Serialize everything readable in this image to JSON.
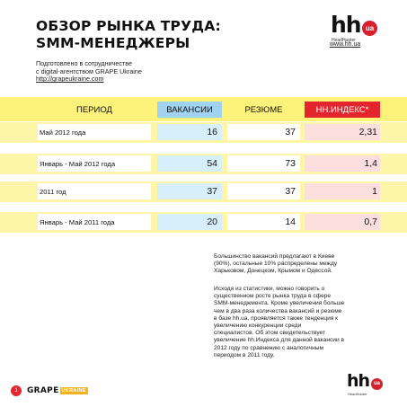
{
  "title": {
    "line1": "ОБЗОР РЫНКА ТРУДА:",
    "line2": "SMM-МЕНЕДЖЕРЫ"
  },
  "logo": {
    "hh": "hh",
    "ua": "ua",
    "sub": "HeadHunter",
    "site": "www.hh.ua"
  },
  "prepared": {
    "line1": "Подготовлено в сотрудничестве",
    "line2": "с digital-агентством GRAPE Ukraine",
    "link": "http://grapeukraine.com"
  },
  "table": {
    "headers": {
      "period": "ПЕРИОД",
      "vacancies": "ВАКАНСИИ",
      "resumes": "РЕЗЮМЕ",
      "hh_index": "HH.ИНДЕКС*"
    },
    "rows": [
      {
        "period": "Май 2012 года",
        "vacancies": "16",
        "resumes": "37",
        "hh_index": "2,31"
      },
      {
        "period": "Январь - Май 2012 года",
        "vacancies": "54",
        "resumes": "73",
        "hh_index": "1,4"
      },
      {
        "period": "2011 год",
        "vacancies": "37",
        "resumes": "37",
        "hh_index": "1"
      },
      {
        "period": "Январь - Май 2011 года",
        "vacancies": "20",
        "resumes": "14",
        "hh_index": "0,7"
      }
    ]
  },
  "paragraph1": [
    "Большинство вакансий предлагают в Киеве",
    "(90%), остальные 10% распределены между",
    "Харьковом, Донецком, Крымом и Одессой."
  ],
  "paragraph2": [
    "Исходя из статистики, можно говорить о",
    "существенном росте рынка труда в сфере",
    "SMM-менеджмента. Кроме увеличения больше",
    "чем в два раза количества вакансий и резюме",
    "в базе hh.ua, проявляется также тенденция к",
    "увеличению конкуренции среди",
    "специалистов. Об этом свидетельствует",
    "увеличение hh.Индекса для данной вакансии в",
    "2012 году по сравнению с аналогичным",
    "периодом в 2011 году."
  ],
  "footer": {
    "page_number": "1",
    "grape": "GRAPE",
    "ukraine": "UKRAINE"
  },
  "colors": {
    "accent_red": "#e3262e",
    "header_yellow": "#fdf27a",
    "row_yellow": "#fdf6a8",
    "vacancies_blue": "#9fd3f0",
    "grape_orange": "#f3b51b"
  }
}
